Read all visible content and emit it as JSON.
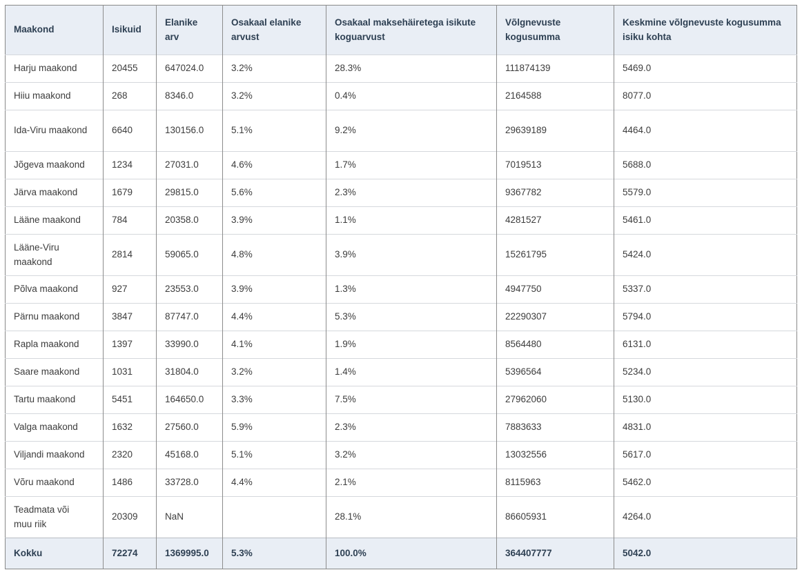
{
  "table": {
    "columns": [
      "Maakond",
      "Isikuid",
      "Elanike arv",
      "Osakaal elanike arvust",
      "Osakaal maksehäiretega isikute koguarvust",
      "Võlgnevuste kogusumma",
      "Keskmine võlgnevuste kogusumma isiku kohta"
    ],
    "rows": [
      [
        "Harju maakond",
        "20455",
        "647024.0",
        "3.2%",
        "28.3%",
        "111874139",
        "5469.0"
      ],
      [
        "Hiiu maakond",
        "268",
        "8346.0",
        "3.2%",
        "0.4%",
        "2164588",
        "8077.0"
      ],
      [
        "Ida-Viru maakond",
        "6640",
        "130156.0",
        "5.1%",
        "9.2%",
        "29639189",
        "4464.0"
      ],
      [
        "Jõgeva maakond",
        "1234",
        "27031.0",
        "4.6%",
        "1.7%",
        "7019513",
        "5688.0"
      ],
      [
        "Järva maakond",
        "1679",
        "29815.0",
        "5.6%",
        "2.3%",
        "9367782",
        "5579.0"
      ],
      [
        "Lääne maakond",
        "784",
        "20358.0",
        "3.9%",
        "1.1%",
        "4281527",
        "5461.0"
      ],
      [
        "Lääne-Viru maakond",
        "2814",
        "59065.0",
        "4.8%",
        "3.9%",
        "15261795",
        "5424.0"
      ],
      [
        "Põlva maakond",
        "927",
        "23553.0",
        "3.9%",
        "1.3%",
        "4947750",
        "5337.0"
      ],
      [
        "Pärnu maakond",
        "3847",
        "87747.0",
        "4.4%",
        "5.3%",
        "22290307",
        "5794.0"
      ],
      [
        "Rapla maakond",
        "1397",
        "33990.0",
        "4.1%",
        "1.9%",
        "8564480",
        "6131.0"
      ],
      [
        "Saare maakond",
        "1031",
        "31804.0",
        "3.2%",
        "1.4%",
        "5396564",
        "5234.0"
      ],
      [
        "Tartu maakond",
        "5451",
        "164650.0",
        "3.3%",
        "7.5%",
        "27962060",
        "5130.0"
      ],
      [
        "Valga maakond",
        "1632",
        "27560.0",
        "5.9%",
        "2.3%",
        "7883633",
        "4831.0"
      ],
      [
        "Viljandi maakond",
        "2320",
        "45168.0",
        "5.1%",
        "3.2%",
        "13032556",
        "5617.0"
      ],
      [
        "Võru maakond",
        "1486",
        "33728.0",
        "4.4%",
        "2.1%",
        "8115963",
        "5462.0"
      ],
      [
        "Teadmata või muu riik",
        "20309",
        "NaN",
        "",
        "28.1%",
        "86605931",
        "4264.0"
      ]
    ],
    "footer": [
      "Kokku",
      "72274",
      "1369995.0",
      "5.3%",
      "100.0%",
      "364407777",
      "5042.0"
    ]
  },
  "colors": {
    "header_bg": "#e9eef5",
    "header_text": "#2e4053",
    "body_text": "#3c3c3c",
    "outer_border": "#888888",
    "vertical_grid": "#8c8c8c",
    "horizontal_grid": "#d5d8dc",
    "footer_bg": "#e9eef5"
  }
}
